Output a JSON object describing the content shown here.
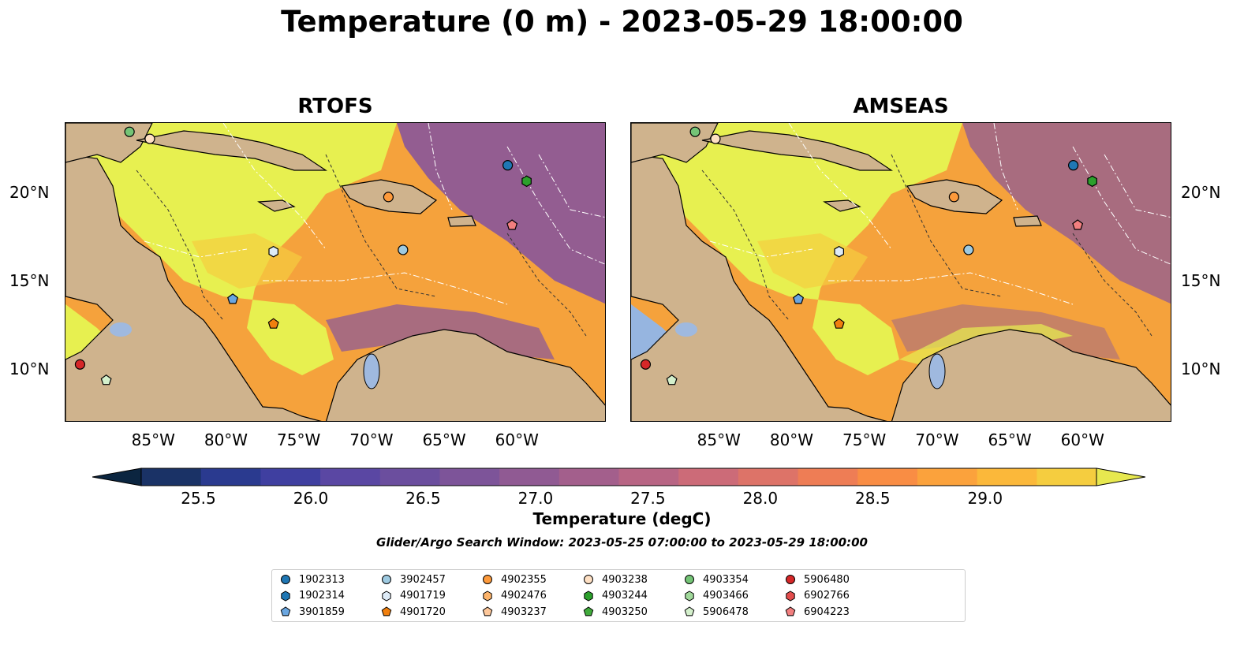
{
  "figure": {
    "title": "Temperature (0 m) - 2023-05-29 18:00:00",
    "search_window": "Glider/Argo Search Window: 2023-05-25 07:00:00 to 2023-05-29 18:00:00"
  },
  "panels": [
    {
      "title": "RTOFS"
    },
    {
      "title": "AMSEAS"
    }
  ],
  "axes": {
    "x_ticks": [
      "85°W",
      "80°W",
      "75°W",
      "70°W",
      "65°W",
      "60°W"
    ],
    "y_ticks": [
      "20°N",
      "15°N",
      "10°N"
    ]
  },
  "colorbar": {
    "label": "Temperature (degC)",
    "ticks": [
      "25.5",
      "26.0",
      "26.5",
      "27.0",
      "27.5",
      "28.0",
      "28.5",
      "29.0"
    ],
    "colors": [
      "#0b2540",
      "#1a3266",
      "#2a3a8f",
      "#3f3fa0",
      "#5a47a3",
      "#6b4e9e",
      "#7d5499",
      "#905a93",
      "#a35f8c",
      "#b86584",
      "#cc6b78",
      "#dd7368",
      "#ee7d55",
      "#f98d44",
      "#fba23c",
      "#fbb83a",
      "#f5cd3f",
      "#e7e84f"
    ],
    "range": [
      25.25,
      29.5
    ]
  },
  "map_colors": {
    "land": "#cfb38d",
    "warm": "#e7f050",
    "warm2": "#f5cd3f",
    "orange": "#f5a23c",
    "purple": "#8d5a96",
    "pacific_amseas": "#96b5e0",
    "lake": "#9fb9df"
  },
  "legend": {
    "entries": [
      {
        "label": "1902313",
        "shape": "circle",
        "color": "#1f77b4"
      },
      {
        "label": "1902314",
        "shape": "hexagon",
        "color": "#1f77b4"
      },
      {
        "label": "3901859",
        "shape": "pentagon",
        "color": "#6aa6e0"
      },
      {
        "label": "3902457",
        "shape": "circle",
        "color": "#9ecae1"
      },
      {
        "label": "4901719",
        "shape": "hexagon",
        "color": "#deebf7"
      },
      {
        "label": "4901720",
        "shape": "pentagon",
        "color": "#f07f0e"
      },
      {
        "label": "4902355",
        "shape": "circle",
        "color": "#fd9a3c"
      },
      {
        "label": "4902476",
        "shape": "hexagon",
        "color": "#fdb46b"
      },
      {
        "label": "4903237",
        "shape": "pentagon",
        "color": "#fdc79a"
      },
      {
        "label": "4903238",
        "shape": "circle",
        "color": "#fee0c4"
      },
      {
        "label": "4903244",
        "shape": "hexagon",
        "color": "#2ca02c"
      },
      {
        "label": "4903250",
        "shape": "pentagon",
        "color": "#41ab3c"
      },
      {
        "label": "4903354",
        "shape": "circle",
        "color": "#74c476"
      },
      {
        "label": "4903466",
        "shape": "hexagon",
        "color": "#a1d99b"
      },
      {
        "label": "5906478",
        "shape": "pentagon",
        "color": "#d4f0cc"
      },
      {
        "label": "5906480",
        "shape": "circle",
        "color": "#d62728"
      },
      {
        "label": "6902766",
        "shape": "hexagon",
        "color": "#e34d4d"
      },
      {
        "label": "6904223",
        "shape": "pentagon",
        "color": "#f27f7f"
      }
    ]
  },
  "floats": [
    {
      "id": "4903354",
      "lon": -86.6,
      "lat": 23.5
    },
    {
      "id": "4903238",
      "lon": -85.2,
      "lat": 23.1
    },
    {
      "id": "1902313",
      "lon": -60.6,
      "lat": 21.6
    },
    {
      "id": "4903244",
      "lon": -59.3,
      "lat": 20.7
    },
    {
      "id": "4902355",
      "lon": -68.8,
      "lat": 19.8
    },
    {
      "id": "6904223",
      "lon": -60.3,
      "lat": 18.2
    },
    {
      "id": "4901719",
      "lon": -76.7,
      "lat": 16.7
    },
    {
      "id": "3902457",
      "lon": -67.8,
      "lat": 16.8
    },
    {
      "id": "3901859",
      "lon": -79.5,
      "lat": 14.0
    },
    {
      "id": "4901720",
      "lon": -76.7,
      "lat": 12.6
    },
    {
      "id": "5906478",
      "lon": -88.2,
      "lat": 9.4
    },
    {
      "id": "5906480",
      "lon": -90.0,
      "lat": 10.3
    }
  ]
}
